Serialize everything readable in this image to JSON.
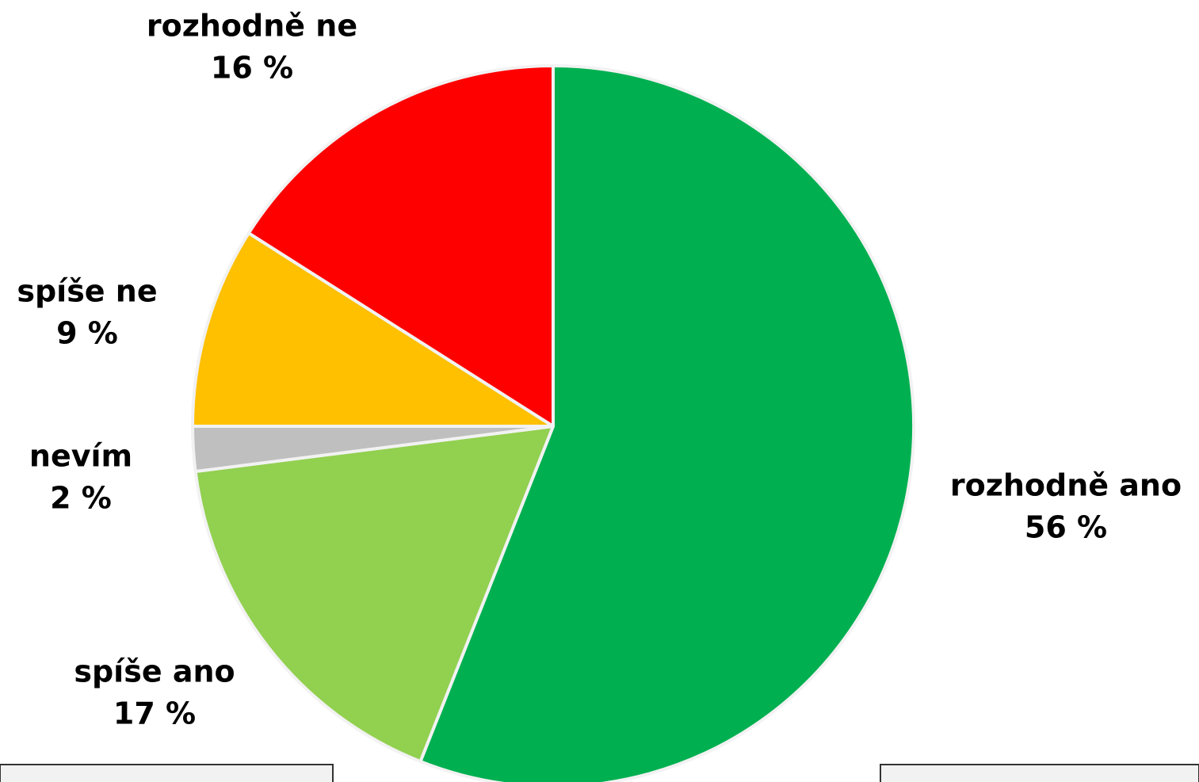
{
  "chart_data": {
    "type": "pie",
    "categories": [
      "rozhodně ano",
      "spíše ano",
      "nevím",
      "spíše ne",
      "rozhodně ne"
    ],
    "values": [
      56,
      17,
      2,
      9,
      16
    ],
    "value_labels": [
      "56 %",
      "17 %",
      "2 %",
      "9 %",
      "16 %"
    ],
    "colors": [
      "#00b050",
      "#92d050",
      "#bfbfbf",
      "#ffc000",
      "#ff0000"
    ]
  }
}
